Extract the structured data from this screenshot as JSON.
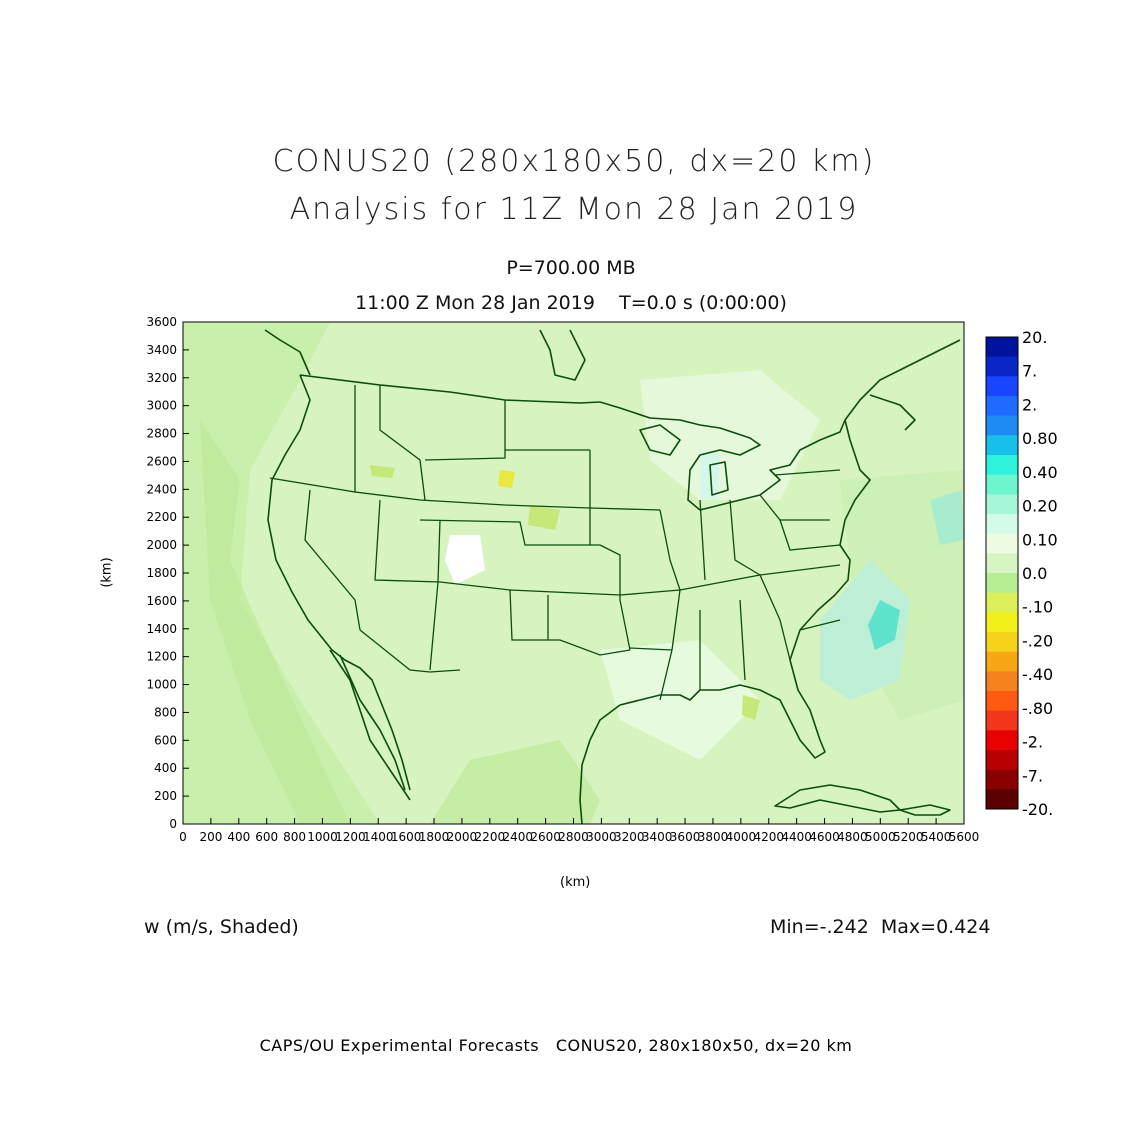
{
  "titles": {
    "line1": "CONUS20 (280x180x50, dx=20 km)",
    "line2": "Analysis for 11Z Mon 28 Jan 2019",
    "level": "P=700.00 MB",
    "time": "11:00 Z Mon 28 Jan 2019    T=0.0 s (0:00:00)"
  },
  "axes": {
    "x_label": "(km)",
    "y_label": "(km)",
    "x_ticks": [
      "0",
      "200",
      "400",
      "600",
      "800",
      "1000",
      "1200",
      "1400",
      "1600",
      "1800",
      "2000",
      "2200",
      "2400",
      "2600",
      "2800",
      "3000",
      "3200",
      "3400",
      "3600",
      "3800",
      "4000",
      "4200",
      "4400",
      "4600",
      "4800",
      "5000",
      "5200",
      "5400",
      "5600"
    ],
    "y_ticks": [
      "0",
      "200",
      "400",
      "600",
      "800",
      "1000",
      "1200",
      "1400",
      "1600",
      "1800",
      "2000",
      "2200",
      "2400",
      "2600",
      "2800",
      "3000",
      "3200",
      "3400",
      "3600"
    ],
    "x_range": [
      0,
      5600
    ],
    "y_range": [
      0,
      3600
    ]
  },
  "field": {
    "name": "w (m/s, Shaded)",
    "stats": "Min=-.242  Max=0.424"
  },
  "colorbar": {
    "labels": [
      "20.",
      "7.",
      "2.",
      "0.80",
      "0.40",
      "0.20",
      "0.10",
      "0.0",
      "-.10",
      "-.20",
      "-.40",
      "-.80",
      "-2.",
      "-7.",
      "-20."
    ],
    "colors": [
      "#00139c",
      "#0a26c8",
      "#1a45ff",
      "#1f6bff",
      "#1e8cf2",
      "#18bfe8",
      "#2ef2dc",
      "#6df5cf",
      "#a6f6d8",
      "#d3fbe8",
      "#eefbe3",
      "#d7f5c2",
      "#b8ee93",
      "#ddf05c",
      "#f2f01b",
      "#f6d21a",
      "#f8a714",
      "#f6811f",
      "#ff5a12",
      "#f4361c",
      "#e80000",
      "#b80000",
      "#8a0000",
      "#5a0000"
    ]
  },
  "footer": "CAPS/OU Experimental Forecasts   CONUS20, 280x180x50, dx=20 km"
}
